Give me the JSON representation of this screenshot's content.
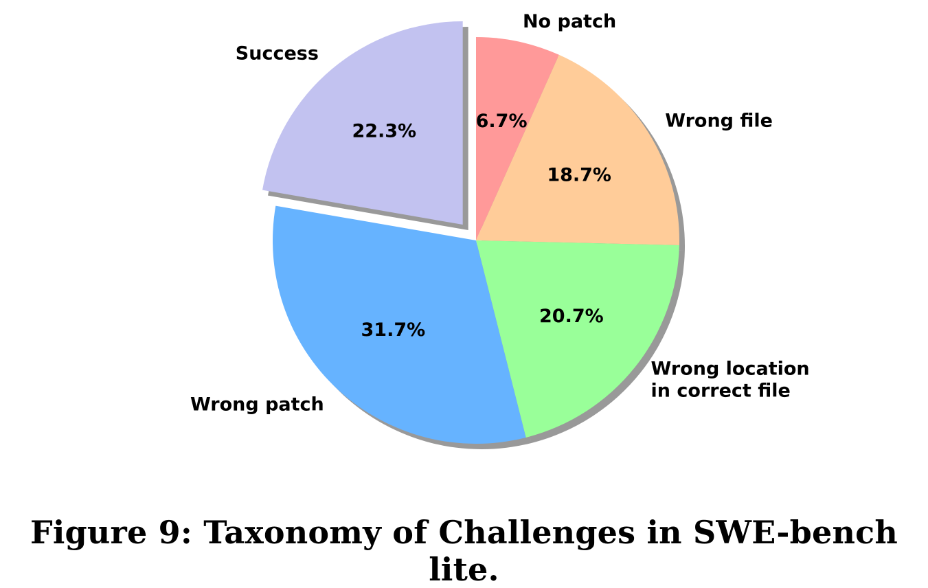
{
  "caption": "Figure 9: Taxonomy of Challenges in SWE-bench lite.",
  "chart_data": {
    "type": "pie",
    "title": "",
    "start_angle_deg": 90,
    "direction": "clockwise",
    "shadow": true,
    "slices": [
      {
        "label": "No patch",
        "value": 6.7,
        "pct_label": "6.7%",
        "color": "#ff9999",
        "explode": false
      },
      {
        "label": "Wrong file",
        "value": 18.7,
        "pct_label": "18.7%",
        "color": "#ffcc99",
        "explode": false
      },
      {
        "label": "Wrong location\nin correct file",
        "value": 20.7,
        "pct_label": "20.7%",
        "color": "#99ff99",
        "explode": false
      },
      {
        "label": "Wrong patch",
        "value": 31.7,
        "pct_label": "31.7%",
        "color": "#66b3ff",
        "explode": false
      },
      {
        "label": "Success",
        "value": 22.3,
        "pct_label": "22.3%",
        "color": "#c2c2f0",
        "explode": true
      }
    ]
  }
}
